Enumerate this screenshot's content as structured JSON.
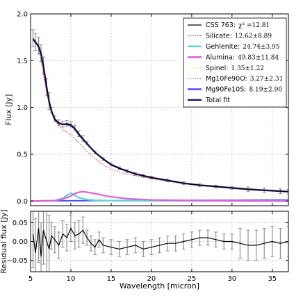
{
  "chart_data": [
    {
      "id": "main",
      "type": "line",
      "ylabel": "Flux [Jy]",
      "xlim": [
        5,
        37
      ],
      "ylim": [
        -0.05,
        2.0
      ],
      "xticks": [
        5,
        10,
        15,
        20,
        25,
        30,
        35
      ],
      "yticks": [
        0.0,
        0.5,
        1.0,
        1.5,
        2.0
      ],
      "ytick_labels": [
        "0.0",
        "0.5",
        "1.0",
        "1.5",
        "2.0"
      ],
      "grid": true,
      "legend_position": "top-right",
      "legend": [
        {
          "name": "CSS 763:",
          "stat": "χ² =12.81",
          "color": "#000000",
          "style": "solid"
        },
        {
          "name": "Silicate:",
          "stat": "12.62±8.89",
          "color": "#d62728",
          "style": "dotted"
        },
        {
          "name": "Gehlenite:",
          "stat": "24.74±3.95",
          "color": "#5fd3d3",
          "style": "thick"
        },
        {
          "name": "Alumina:",
          "stat": "49.83±11.84",
          "color": "#e060d8",
          "style": "thick"
        },
        {
          "name": "Spinel:",
          "stat": "1.35±1.22",
          "color": "#e8e070",
          "style": "dotted"
        },
        {
          "name": "Mg10Fe90O:",
          "stat": "3.27±2.31",
          "color": "#707070",
          "style": "dotted"
        },
        {
          "name": "Mg90Fe10S:",
          "stat": "8.19±2.90",
          "color": "#5050f0",
          "style": "thick"
        },
        {
          "name": "Total fit",
          "stat": "",
          "color": "#202070",
          "style": "thick"
        }
      ],
      "observed": {
        "x": [
          5.3,
          5.6,
          6.0,
          6.3,
          6.6,
          7.0,
          7.3,
          7.6,
          8.0,
          8.5,
          9.0,
          9.5,
          10.0,
          10.5,
          11.0,
          11.5,
          12.0,
          13.0,
          14.0,
          15.0,
          16.0,
          17.0,
          18.0,
          19.0,
          20.0,
          22.0,
          24.0,
          26.0,
          28.0,
          30.0,
          32.0,
          34.0,
          36.0,
          37.0
        ],
        "y": [
          1.74,
          1.7,
          1.66,
          1.58,
          1.45,
          1.22,
          1.07,
          0.97,
          0.88,
          0.84,
          0.82,
          0.83,
          0.82,
          0.78,
          0.72,
          0.67,
          0.62,
          0.52,
          0.45,
          0.39,
          0.35,
          0.32,
          0.29,
          0.27,
          0.25,
          0.22,
          0.19,
          0.17,
          0.155,
          0.14,
          0.125,
          0.115,
          0.105,
          0.1
        ]
      },
      "total_fit": {
        "x": [
          5.3,
          5.6,
          6.0,
          6.3,
          6.6,
          7.0,
          7.3,
          7.6,
          8.0,
          8.5,
          9.0,
          9.5,
          10.0,
          10.5,
          11.0,
          11.5,
          12.0,
          13.0,
          14.0,
          15.0,
          16.0,
          17.0,
          18.0,
          19.0,
          20.0,
          22.0,
          24.0,
          26.0,
          28.0,
          30.0,
          32.0,
          34.0,
          36.0,
          37.0
        ],
        "y": [
          1.73,
          1.7,
          1.65,
          1.57,
          1.44,
          1.21,
          1.06,
          0.96,
          0.87,
          0.83,
          0.82,
          0.82,
          0.81,
          0.77,
          0.71,
          0.66,
          0.61,
          0.52,
          0.45,
          0.39,
          0.35,
          0.32,
          0.29,
          0.27,
          0.25,
          0.22,
          0.19,
          0.17,
          0.155,
          0.14,
          0.125,
          0.115,
          0.105,
          0.1
        ]
      },
      "silicate": {
        "x": [
          5.3,
          6.0,
          7.0,
          8.0,
          9.0,
          10.0,
          11.0,
          12.0,
          13.0,
          14.0,
          15.0,
          16.0,
          18.0,
          20.0,
          22.0,
          25.0,
          28.0,
          31.0,
          34.0,
          37.0
        ],
        "y": [
          1.72,
          1.64,
          1.15,
          0.86,
          0.76,
          0.71,
          0.62,
          0.53,
          0.45,
          0.39,
          0.34,
          0.31,
          0.27,
          0.24,
          0.21,
          0.18,
          0.16,
          0.14,
          0.12,
          0.105
        ]
      },
      "gehlenite": {
        "x": [
          5.0,
          8.0,
          9.0,
          9.5,
          10.0,
          10.5,
          11.0,
          12.0,
          13.0,
          15.0,
          20.0,
          37.0
        ],
        "y": [
          0.0,
          0.005,
          0.03,
          0.06,
          0.085,
          0.06,
          0.035,
          0.015,
          0.008,
          0.004,
          0.002,
          0.0
        ]
      },
      "alumina": {
        "x": [
          5.0,
          8.0,
          9.0,
          10.0,
          10.5,
          11.0,
          11.5,
          12.0,
          13.0,
          14.0,
          15.0,
          17.0,
          20.0,
          25.0,
          30.0,
          37.0
        ],
        "y": [
          0.0,
          0.005,
          0.02,
          0.055,
          0.08,
          0.095,
          0.1,
          0.095,
          0.08,
          0.06,
          0.045,
          0.025,
          0.012,
          0.005,
          0.002,
          0.0
        ]
      },
      "spinel": {
        "x": [
          5.0,
          10.0,
          12.0,
          13.0,
          14.0,
          16.0,
          20.0,
          37.0
        ],
        "y": [
          0.0,
          0.0,
          0.003,
          0.008,
          0.004,
          0.002,
          0.001,
          0.0
        ]
      },
      "mg10fe90o": {
        "x": [
          5.0,
          10.0,
          15.0,
          20.0,
          25.0,
          30.0,
          37.0
        ],
        "y": [
          0.0,
          0.0,
          0.002,
          0.003,
          0.002,
          0.001,
          0.0
        ]
      },
      "mg90fe10s": {
        "x": [
          5.0,
          10.0,
          15.0,
          20.0,
          25.0,
          30.0,
          33.0,
          37.0
        ],
        "y": [
          0.0,
          0.003,
          0.005,
          0.006,
          0.007,
          0.008,
          0.009,
          0.01
        ]
      }
    },
    {
      "id": "residual",
      "type": "line",
      "xlabel": "Wavelength [micron]",
      "ylabel": "Residual flux [Jy]",
      "xlim": [
        5,
        37
      ],
      "ylim": [
        -0.08,
        0.08
      ],
      "xticks": [
        5,
        10,
        15,
        20,
        25,
        30,
        35
      ],
      "xtick_labels": [
        "5",
        "10",
        "15",
        "20",
        "25",
        "30",
        "35"
      ],
      "yticks": [
        -0.05,
        0.0,
        0.05
      ],
      "ytick_labels": [
        "−0.05",
        "0.00",
        "0.05"
      ],
      "grid": true,
      "residual": {
        "x": [
          5.3,
          5.6,
          6.0,
          6.3,
          6.6,
          7.0,
          7.3,
          7.6,
          8.0,
          8.5,
          9.0,
          9.5,
          10.0,
          10.5,
          11.0,
          11.5,
          12.0,
          12.5,
          13.0,
          13.5,
          14.0,
          15.0,
          16.0,
          17.0,
          18.0,
          19.0,
          20.0,
          21.0,
          22.0,
          23.0,
          24.0,
          25.0,
          26.0,
          27.0,
          28.0,
          29.0,
          30.0,
          31.0,
          32.0,
          33.0,
          34.0,
          35.0,
          36.0,
          37.0
        ],
        "y": [
          0.02,
          -0.03,
          0.035,
          -0.04,
          0.03,
          0.0,
          -0.02,
          0.015,
          0.005,
          -0.01,
          0.02,
          0.01,
          0.035,
          0.015,
          0.02,
          0.03,
          0.01,
          -0.005,
          -0.015,
          0.005,
          -0.01,
          -0.015,
          -0.02,
          -0.015,
          -0.01,
          -0.02,
          -0.015,
          -0.01,
          -0.005,
          -0.005,
          0.0,
          0.005,
          0.01,
          0.01,
          0.005,
          0.0,
          0.0,
          -0.005,
          -0.01,
          -0.01,
          -0.005,
          0.0,
          -0.005,
          0.0
        ]
      }
    }
  ]
}
